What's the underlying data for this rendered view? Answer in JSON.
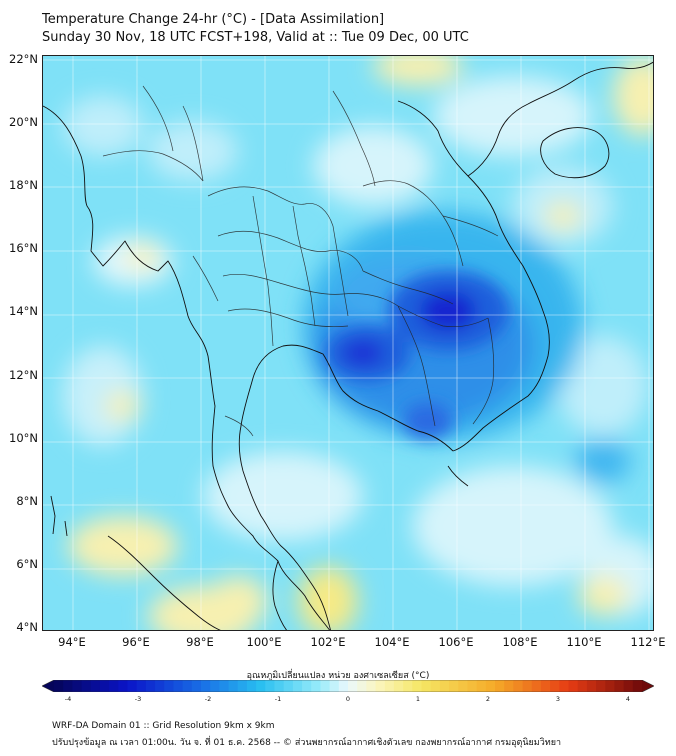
{
  "title_line1": "Temperature Change 24-hr (°C) - [Data Assimilation]",
  "title_line2": "Sunday 30 Nov, 18 UTC FCST+198, Valid at :: Tue 09 Dec, 00 UTC",
  "lat_labels": [
    "22°N",
    "20°N",
    "18°N",
    "16°N",
    "14°N",
    "12°N",
    "10°N",
    "8°N",
    "6°N",
    "4°N"
  ],
  "lon_labels": [
    "94°E",
    "96°E",
    "98°E",
    "100°E",
    "102°E",
    "104°E",
    "106°E",
    "108°E",
    "110°E",
    "112°E"
  ],
  "colorbar": {
    "title": "อุณหภูมิเปลี่ยนแปลง หน่วย องศาเซลเซียส (°C)",
    "ticks": [
      "-4",
      "-3",
      "-2",
      "-1",
      "0",
      "1",
      "2",
      "3",
      "4"
    ],
    "range": [
      -4,
      4
    ]
  },
  "colors": {
    "background_field": "#7fe1f7",
    "strong_cooling": "#1226d0",
    "moderate_cooling": "#2f7ee6",
    "near_zero": "#e8f7fb",
    "slight_warming": "#f9f0a8",
    "coastline": "#111111"
  },
  "footer_line1": "WRF-DA Domain 01 :: Grid Resolution 9km x 9km",
  "footer_line2": "ปรับปรุงข้อมูล ณ เวลา 01:00น. วัน จ. ที่ 01 ธ.ค. 2568 -- © ส่วนพยากรณ์อากาศเชิงตัวเลข กองพยากรณ์อากาศ กรมอุตุนิยมวิทยา"
}
